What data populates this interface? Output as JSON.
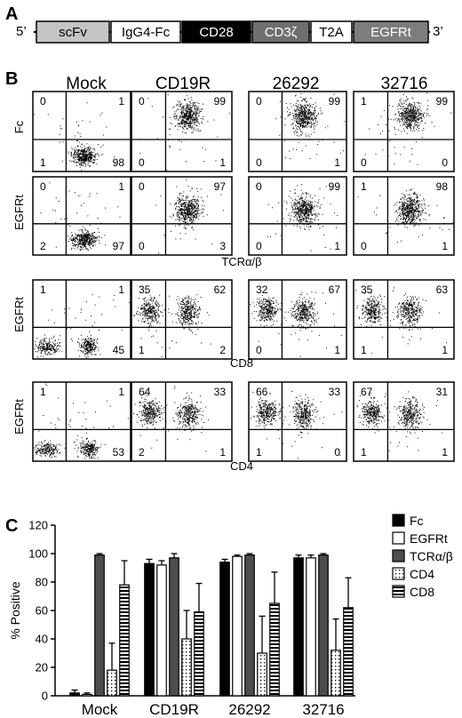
{
  "figure": {
    "panel_a": {
      "letter": "A",
      "five_prime": "5’",
      "three_prime": "3’",
      "segments": [
        {
          "label": "scFv",
          "fill": "#c4c4c4",
          "text_color": "#000000"
        },
        {
          "label": "IgG4-Fc",
          "fill": "#ffffff",
          "text_color": "#000000"
        },
        {
          "label": "CD28",
          "fill": "#000000",
          "text_color": "#ffffff"
        },
        {
          "label": "CD3ζ",
          "fill": "#6f6f6f",
          "text_color": "#ffffff"
        },
        {
          "label": "T2A",
          "fill": "#ffffff",
          "text_color": "#000000"
        },
        {
          "label": "EGFRt",
          "fill": "#7d7d7d",
          "text_color": "#ffffff"
        }
      ]
    },
    "panel_b": {
      "letter": "B",
      "columns": [
        "Mock",
        "CD19R",
        "26292",
        "32716"
      ],
      "rows": [
        {
          "label": "Fc",
          "xlabel": "",
          "quads": [
            [
              "0",
              "1",
              "1",
              "98"
            ],
            [
              "0",
              "99",
              "0",
              "1"
            ],
            [
              "0",
              "99",
              "0",
              "1"
            ],
            [
              "1",
              "99",
              "0",
              "0"
            ]
          ]
        },
        {
          "label": "EGFRt",
          "xlabel": "TCRα/β",
          "quads": [
            [
              "0",
              "1",
              "2",
              "97"
            ],
            [
              "0",
              "97",
              "0",
              "3"
            ],
            [
              "0",
              "99",
              "0",
              "1"
            ],
            [
              "1",
              "98",
              "0",
              "1"
            ]
          ]
        },
        {
          "label": "EGFRt",
          "xlabel": "CD8",
          "quads": [
            [
              "1",
              "1",
              "",
              "45"
            ],
            [
              "35",
              "62",
              "1",
              "2"
            ],
            [
              "32",
              "67",
              "0",
              "1"
            ],
            [
              "35",
              "63",
              "1",
              "1"
            ]
          ]
        },
        {
          "label": "EGFRt",
          "xlabel": "CD4",
          "quads": [
            [
              "1",
              "1",
              "",
              "53"
            ],
            [
              "64",
              "33",
              "2",
              "1"
            ],
            [
              "66",
              "33",
              "1",
              "0"
            ],
            [
              "67",
              "31",
              "1",
              "1"
            ]
          ]
        }
      ]
    },
    "panel_c": {
      "letter": "C"
    }
  },
  "chart_data": {
    "type": "bar",
    "ylabel": "% Positive",
    "xlabel": "",
    "ylim": [
      0,
      120
    ],
    "yticks": [
      0,
      20,
      40,
      60,
      80,
      100,
      120
    ],
    "categories": [
      "Mock",
      "CD19R",
      "26292",
      "32716"
    ],
    "legend_position": "top-right",
    "series": [
      {
        "name": "Fc",
        "pattern": "solid-black",
        "values": [
          2,
          93,
          94,
          97
        ],
        "errors": [
          2,
          3,
          2,
          2
        ]
      },
      {
        "name": "EGFRt",
        "pattern": "white",
        "values": [
          1,
          92,
          98,
          97
        ],
        "errors": [
          1,
          3,
          1,
          2
        ]
      },
      {
        "name": "TCRα/β",
        "pattern": "dark-gray",
        "values": [
          99,
          97,
          99,
          99
        ],
        "errors": [
          1,
          3,
          1,
          1
        ]
      },
      {
        "name": "CD4",
        "pattern": "dotted",
        "values": [
          18,
          40,
          30,
          32
        ],
        "errors": [
          19,
          20,
          26,
          22
        ]
      },
      {
        "name": "CD8",
        "pattern": "horizontal-stripes",
        "values": [
          78,
          59,
          65,
          62
        ],
        "errors": [
          17,
          20,
          22,
          21
        ]
      }
    ]
  }
}
